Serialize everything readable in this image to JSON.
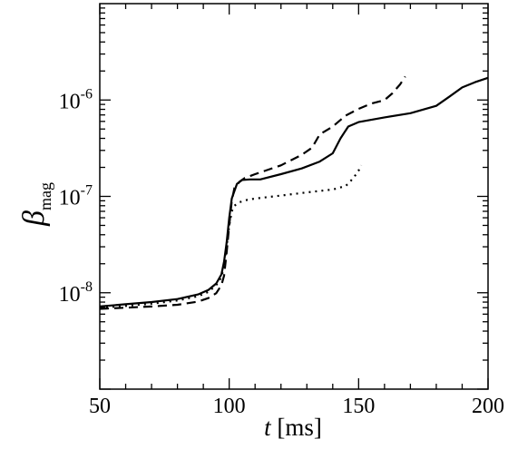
{
  "chart_data": {
    "type": "line",
    "title": "",
    "xlabel": "t [ms]",
    "ylabel": "β_mag",
    "xlim": [
      50,
      200
    ],
    "ylim": [
      1e-09,
      1e-05
    ],
    "y_scale": "log",
    "x_ticks": [
      50,
      100,
      150,
      200
    ],
    "x_tick_labels": [
      "50",
      "100",
      "150",
      "200"
    ],
    "y_ticks": [
      1e-08,
      1e-07,
      1e-06
    ],
    "y_tick_labels": [
      {
        "base": "10",
        "exp": "-8"
      },
      {
        "base": "10",
        "exp": "-7"
      },
      {
        "base": "10",
        "exp": "-6"
      }
    ],
    "x_label_parts": {
      "var": "t",
      "unit": " [ms]"
    },
    "y_label_parts": {
      "symbol": "β",
      "sub": "mag"
    },
    "grid": false,
    "legend": "none",
    "series": [
      {
        "style": "solid",
        "color": "#000000",
        "x": [
          50,
          60,
          70,
          80,
          88,
          92,
          95,
          97,
          98,
          99,
          100,
          101,
          103,
          105,
          108,
          112,
          120,
          128,
          135,
          140,
          143,
          146,
          150,
          160,
          170,
          180,
          185,
          190,
          195,
          200
        ],
        "y": [
          7.2e-09,
          7.6e-09,
          8e-09,
          8.6e-09,
          9.6e-09,
          1.07e-08,
          1.25e-08,
          1.55e-08,
          2.1e-08,
          3.3e-08,
          6e-08,
          9.5e-08,
          1.35e-07,
          1.48e-07,
          1.5e-07,
          1.5e-07,
          1.7e-07,
          1.95e-07,
          2.3e-07,
          2.8e-07,
          4e-07,
          5.3e-07,
          5.9e-07,
          6.6e-07,
          7.3e-07,
          8.7e-07,
          1.08e-06,
          1.35e-06,
          1.53e-06,
          1.7e-06
        ]
      },
      {
        "style": "dashed",
        "color": "#000000",
        "x": [
          50,
          60,
          70,
          80,
          88,
          92,
          95,
          97,
          98,
          99,
          100,
          101,
          102,
          104,
          106,
          110,
          120,
          128,
          132,
          135,
          140,
          145,
          150,
          155,
          160,
          163,
          166,
          168
        ],
        "y": [
          6.8e-09,
          7e-09,
          7.2e-09,
          7.5e-09,
          8.1e-09,
          8.8e-09,
          9.9e-09,
          1.2e-08,
          1.5e-08,
          2.6e-08,
          5e-08,
          9e-08,
          1.22e-07,
          1.42e-07,
          1.55e-07,
          1.7e-07,
          2.1e-07,
          2.7e-07,
          3.2e-07,
          4.4e-07,
          5.3e-07,
          6.9e-07,
          8.1e-07,
          9.2e-07,
          1e-06,
          1.17e-06,
          1.45e-06,
          1.75e-06
        ]
      },
      {
        "style": "dotted",
        "color": "#000000",
        "x": [
          50,
          60,
          70,
          80,
          88,
          92,
          95,
          97,
          98,
          99,
          100,
          101,
          102,
          104,
          107,
          110,
          120,
          130,
          140,
          145,
          148,
          150,
          151
        ],
        "y": [
          7e-09,
          7.3e-09,
          7.7e-09,
          8.3e-09,
          9.2e-09,
          1.02e-08,
          1.2e-08,
          1.45e-08,
          1.9e-08,
          3e-08,
          5e-08,
          7e-08,
          8e-08,
          8.7e-08,
          9.2e-08,
          9.5e-08,
          1.02e-07,
          1.1e-07,
          1.18e-07,
          1.28e-07,
          1.55e-07,
          1.85e-07,
          2.1e-07
        ]
      }
    ]
  }
}
